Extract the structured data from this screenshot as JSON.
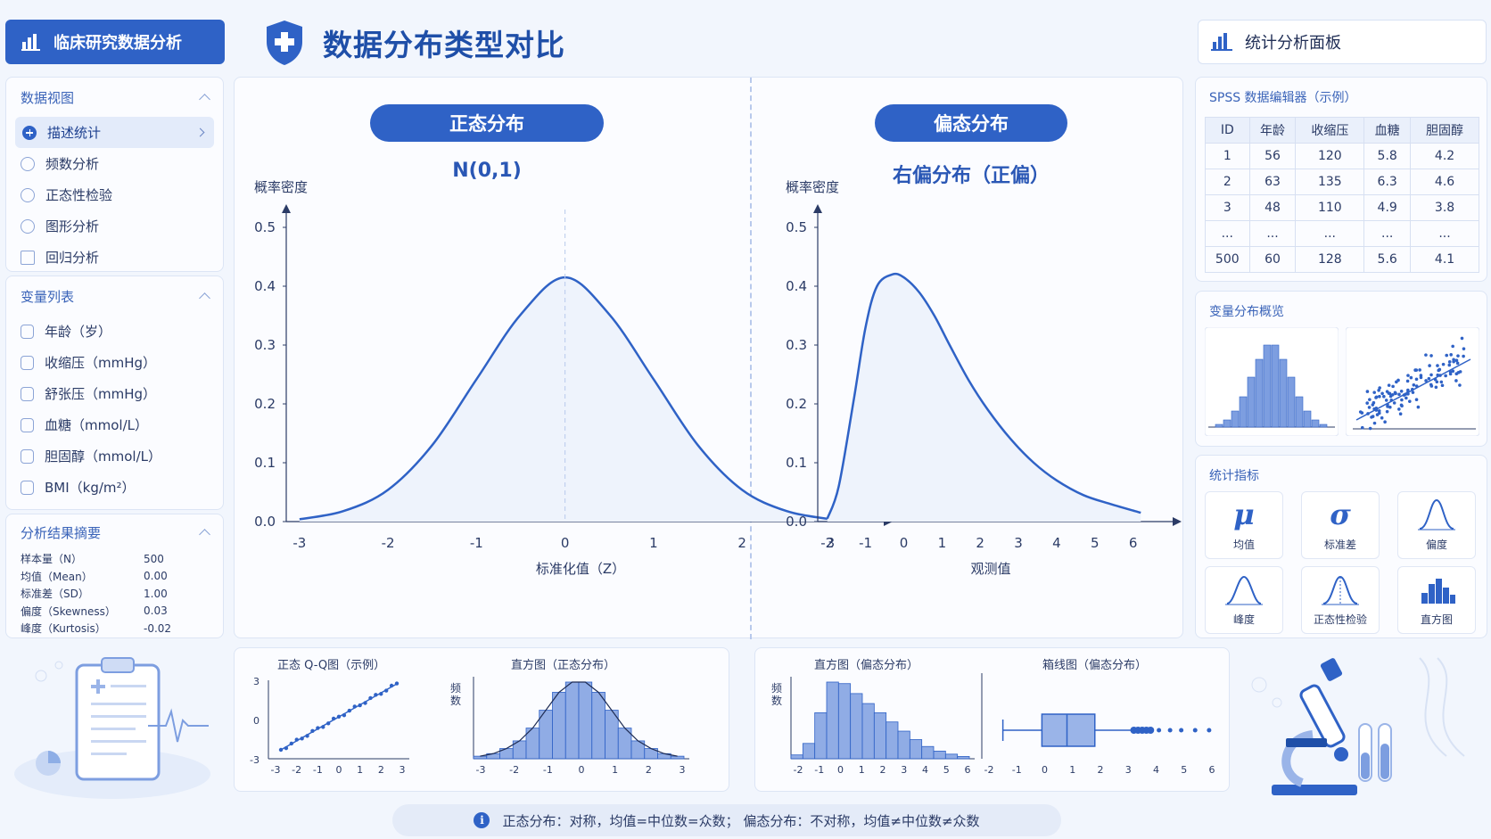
{
  "app": {
    "brand": "临床研究数据分析",
    "page_title": "数据分布类型对比",
    "right_title": "统计分析面板"
  },
  "sidebar": {
    "data_view_title": "数据视图",
    "nav": [
      {
        "label": "描述统计",
        "active": true
      },
      {
        "label": "频数分析"
      },
      {
        "label": "正态性检验"
      },
      {
        "label": "图形分析"
      },
      {
        "label": "回归分析"
      }
    ],
    "var_title": "变量列表",
    "vars": [
      "年龄（岁）",
      "收缩压（mmHg）",
      "舒张压（mmHg）",
      "血糖（mmol/L）",
      "胆固醇（mmol/L）",
      "BMI（kg/m²）"
    ],
    "summary_title": "分析结果摘要",
    "summary": [
      {
        "k": "样本量（N）",
        "v": "500"
      },
      {
        "k": "均值（Mean）",
        "v": "0.00"
      },
      {
        "k": "标准差（SD）",
        "v": "1.00"
      },
      {
        "k": "偏度（Skewness）",
        "v": "0.03"
      },
      {
        "k": "峰度（Kurtosis）",
        "v": "-0.02"
      }
    ]
  },
  "main": {
    "left_pill": "正态分布",
    "left_sub": "N(0,1)",
    "right_pill": "偏态分布",
    "right_sub": "右偏分布（正偏）"
  },
  "chart_data": [
    {
      "type": "line",
      "ylabel": "概率密度",
      "xlabel": "标准化值（Z）",
      "x_ticks": [
        -3,
        -2,
        -1,
        0,
        1,
        2,
        3
      ],
      "y_ticks": [
        "0.0",
        "0.1",
        "0.2",
        "0.3",
        "0.4",
        "0.5"
      ],
      "xlim": [
        -3.15,
        3.5
      ],
      "ylim": [
        0,
        0.5
      ],
      "x": [
        -3,
        -2.5,
        -2,
        -1.5,
        -1,
        -0.5,
        0,
        0.5,
        1,
        1.5,
        2,
        2.5,
        3
      ],
      "y": [
        0.004,
        0.018,
        0.054,
        0.13,
        0.242,
        0.352,
        0.415,
        0.352,
        0.242,
        0.13,
        0.054,
        0.018,
        0.004
      ]
    },
    {
      "type": "line",
      "ylabel": "概率密度",
      "xlabel": "观测值",
      "x_ticks": [
        -2,
        -1,
        0,
        1,
        2,
        3,
        4,
        5,
        6
      ],
      "y_ticks": [
        "0.0",
        "0.1",
        "0.2",
        "0.3",
        "0.4",
        "0.5"
      ],
      "xlim": [
        -2.25,
        6.8
      ],
      "ylim": [
        0,
        0.5
      ],
      "x": [
        -2,
        -1.7,
        -1.3,
        -1,
        -0.7,
        -0.3,
        0,
        0.4,
        0.8,
        1.2,
        1.7,
        2.2,
        2.8,
        3.4,
        4,
        4.7,
        5.4,
        6.2
      ],
      "y": [
        0.005,
        0.06,
        0.21,
        0.33,
        0.4,
        0.42,
        0.415,
        0.39,
        0.35,
        0.3,
        0.24,
        0.19,
        0.14,
        0.1,
        0.07,
        0.045,
        0.03,
        0.015
      ]
    }
  ],
  "spss": {
    "title": "SPSS 数据编辑器（示例）",
    "headers": [
      "ID",
      "年龄",
      "收缩压",
      "血糖",
      "胆固醇"
    ],
    "rows": [
      [
        "1",
        "56",
        "120",
        "5.8",
        "4.2"
      ],
      [
        "2",
        "63",
        "135",
        "6.3",
        "4.6"
      ],
      [
        "3",
        "48",
        "110",
        "4.9",
        "3.8"
      ],
      [
        "...",
        "...",
        "...",
        "...",
        "..."
      ],
      [
        "500",
        "60",
        "128",
        "5.6",
        "4.1"
      ]
    ]
  },
  "overview_title": "变量分布概览",
  "stats_title": "统计指标",
  "stats": [
    {
      "sym": "μ",
      "label": "均值"
    },
    {
      "sym": "σ",
      "label": "标准差"
    },
    {
      "sym": "",
      "label": "偏度"
    },
    {
      "sym": "",
      "label": "峰度"
    },
    {
      "sym": "",
      "label": "正态性检验"
    },
    {
      "sym": "",
      "label": "直方图"
    }
  ],
  "mini_charts": {
    "qq_title": "正态 Q-Q图（示例）",
    "hist_norm_title": "直方图（正态分布）",
    "hist_skew_title": "直方图（偏态分布）",
    "box_title": "箱线图（偏态分布）",
    "freq_label": "频数",
    "qq_yticks": [
      "3",
      "0",
      "-3"
    ],
    "qq_xticks": [
      "-3",
      "-2",
      "-1",
      "0",
      "1",
      "2",
      "3"
    ],
    "norm_xticks": [
      "-3",
      "-2",
      "-1",
      "0",
      "1",
      "2",
      "3"
    ],
    "skew_xticks": [
      "-2",
      "-1",
      "0",
      "1",
      "2",
      "3",
      "4",
      "5",
      "6"
    ],
    "hist_norm_values": [
      1,
      2,
      4,
      7,
      12,
      19,
      26,
      30,
      30,
      26,
      19,
      12,
      7,
      4,
      2,
      1
    ],
    "hist_skew_values": [
      5,
      20,
      60,
      100,
      98,
      85,
      72,
      60,
      48,
      36,
      25,
      16,
      10,
      6,
      3
    ]
  },
  "footer": "正态分布：对称，均值=中位数=众数；  偏态分布：不对称，均值≠中位数≠众数"
}
